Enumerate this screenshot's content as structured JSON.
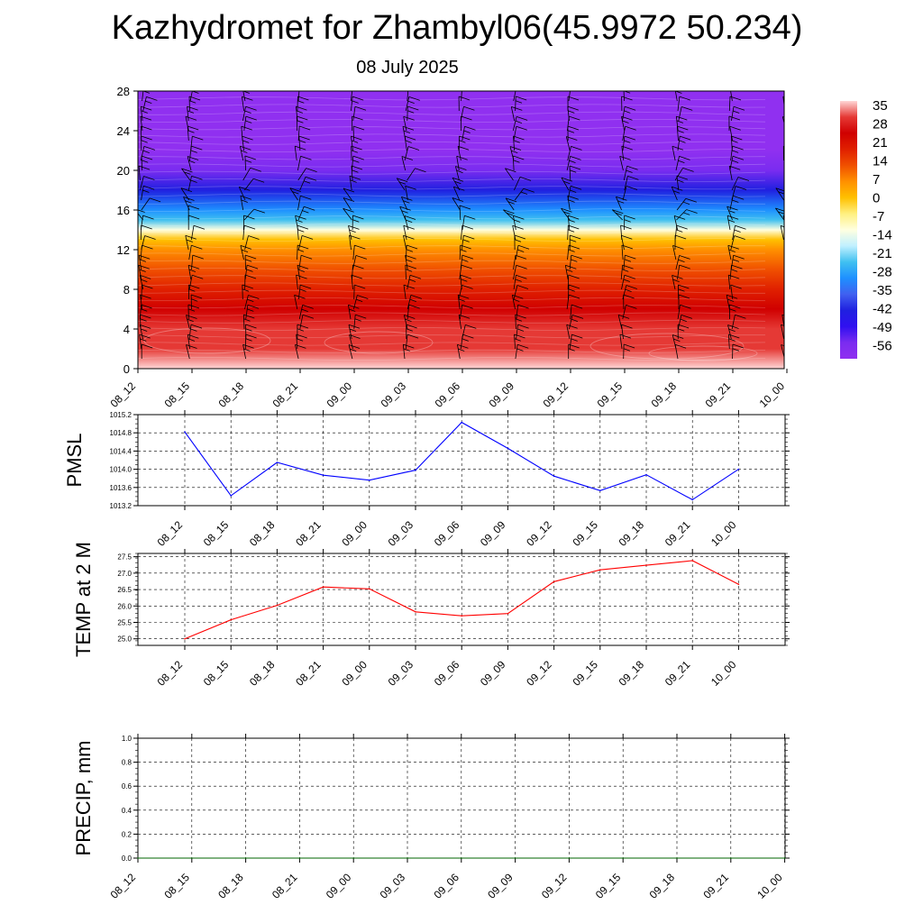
{
  "title": "Kazhydromet for Zhambyl06(45.9972 50.234)",
  "subtitle": "08 July 2025",
  "time_labels": [
    "08_12",
    "08_15",
    "08_18",
    "08_21",
    "09_00",
    "09_03",
    "09_06",
    "09_09",
    "09_12",
    "09_15",
    "09_18",
    "09_21",
    "10_00"
  ],
  "colorbar": {
    "labels": [
      "35",
      "28",
      "21",
      "14",
      "7",
      "0",
      "-7",
      "-14",
      "-21",
      "-28",
      "-35",
      "-42",
      "-49",
      "-56"
    ],
    "colors_top_to_bottom": [
      "#ffd6d6",
      "#e53935",
      "#d00000",
      "#e02000",
      "#f05000",
      "#ff9000",
      "#ffc000",
      "#fff080",
      "#ffffe0",
      "#c0f0ff",
      "#40c0f0",
      "#1e90ff",
      "#4060f0",
      "#2020e0",
      "#3010f0",
      "#7a2cf0",
      "#9030f0"
    ]
  },
  "chart_data": [
    {
      "type": "heatmap",
      "title": "",
      "xlabel": "",
      "ylabel": "",
      "x": [
        "08_12",
        "08_15",
        "08_18",
        "08_21",
        "09_00",
        "09_03",
        "09_06",
        "09_09",
        "09_12",
        "09_15",
        "09_18",
        "09_21",
        "10_00"
      ],
      "ylim": [
        0,
        28
      ],
      "yticks": [
        0,
        4,
        8,
        12,
        16,
        20,
        24,
        28
      ],
      "value_range": [
        -56,
        35
      ],
      "profile_levels": [
        0,
        2,
        4,
        6,
        8,
        10,
        12,
        13,
        14,
        15,
        16,
        18,
        20,
        22,
        24,
        26,
        28
      ],
      "profile_values": [
        33,
        31,
        29,
        25,
        20,
        14,
        6,
        0,
        -12,
        -22,
        -30,
        -40,
        -48,
        -54,
        -60,
        -64,
        -66
      ],
      "wind_barbs": true
    },
    {
      "type": "line",
      "title": "",
      "xlabel": "",
      "ylabel": "PMSL",
      "x": [
        "08_12",
        "08_15",
        "08_18",
        "08_21",
        "09_00",
        "09_03",
        "09_06",
        "09_09",
        "09_12",
        "09_15",
        "09_18",
        "09_21",
        "10_00"
      ],
      "ylim": [
        1013.2,
        1015.2
      ],
      "yticks": [
        "1013.2",
        "1013.6",
        "1014.0",
        "1014.4",
        "1014.8",
        "1015.2"
      ],
      "series": [
        {
          "values": [
            1014.82,
            1013.42,
            1014.15,
            1013.87,
            1013.76,
            1013.98,
            1015.03,
            1014.46,
            1013.85,
            1013.53,
            1013.88,
            1013.33,
            1014.0
          ],
          "color": "#0000ff"
        }
      ]
    },
    {
      "type": "line",
      "title": "",
      "xlabel": "",
      "ylabel": "TEMP at 2 M",
      "x": [
        "08_12",
        "08_15",
        "08_18",
        "08_21",
        "09_00",
        "09_03",
        "09_06",
        "09_09",
        "09_12",
        "09_15",
        "09_18",
        "09_21",
        "10_00"
      ],
      "ylim": [
        24.8,
        27.6
      ],
      "yticks": [
        "25.0",
        "25.5",
        "26.0",
        "26.5",
        "27.0",
        "27.5"
      ],
      "series": [
        {
          "values": [
            25.0,
            25.58,
            26.02,
            26.58,
            26.52,
            25.82,
            25.7,
            25.77,
            26.74,
            27.1,
            27.24,
            27.38,
            26.66
          ],
          "color": "#ff0000"
        }
      ]
    },
    {
      "type": "line",
      "title": "",
      "xlabel": "",
      "ylabel": "PRECIP, mm",
      "x": [
        "08_12",
        "08_15",
        "08_18",
        "08_21",
        "09_00",
        "09_03",
        "09_06",
        "09_09",
        "09_12",
        "09_15",
        "09_18",
        "09_21",
        "10_00"
      ],
      "ylim": [
        0,
        1
      ],
      "yticks": [
        "0.0",
        "0.2",
        "0.4",
        "0.6",
        "0.8",
        "1.0"
      ],
      "series": [
        {
          "values": [
            0,
            0,
            0,
            0,
            0,
            0,
            0,
            0,
            0,
            0,
            0,
            0,
            0
          ],
          "color": "#006400"
        }
      ]
    }
  ]
}
